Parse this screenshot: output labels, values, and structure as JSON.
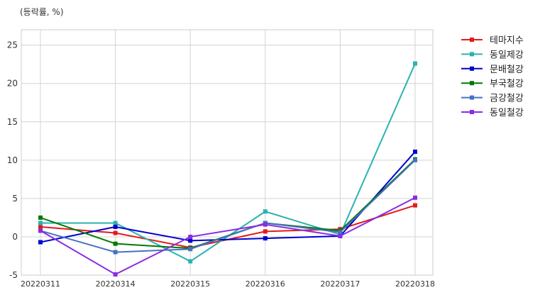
{
  "chart_data": {
    "type": "line",
    "unit_label": "(등락률, %)",
    "categories": [
      "20220311",
      "20220314",
      "20220315",
      "20220316",
      "20220317",
      "20220318"
    ],
    "ylim": [
      -5,
      27
    ],
    "yticks": [
      -5,
      0,
      5,
      10,
      15,
      20,
      25
    ],
    "grid": true,
    "legend_position": "right-top, outside plot",
    "series": [
      {
        "name": "테마지수",
        "color": "#e41a1c",
        "values": [
          1.3,
          0.5,
          -1.4,
          0.7,
          1.0,
          4.1
        ]
      },
      {
        "name": "동일제강",
        "color": "#2ab3b0",
        "values": [
          1.8,
          1.8,
          -3.2,
          3.3,
          0.3,
          22.6
        ]
      },
      {
        "name": "문배철강",
        "color": "#0000cc",
        "values": [
          -0.7,
          1.3,
          -0.5,
          -0.2,
          0.1,
          11.1
        ]
      },
      {
        "name": "부국철강",
        "color": "#007a00",
        "values": [
          2.5,
          -0.9,
          -1.5,
          1.8,
          0.8,
          10.1
        ]
      },
      {
        "name": "금강철강",
        "color": "#4472c4",
        "values": [
          0.8,
          -2.0,
          -1.6,
          1.8,
          0.6,
          10.0
        ]
      },
      {
        "name": "동일철강",
        "color": "#8a2be2",
        "values": [
          0.8,
          -4.9,
          0.0,
          1.6,
          0.1,
          5.1
        ]
      }
    ]
  }
}
